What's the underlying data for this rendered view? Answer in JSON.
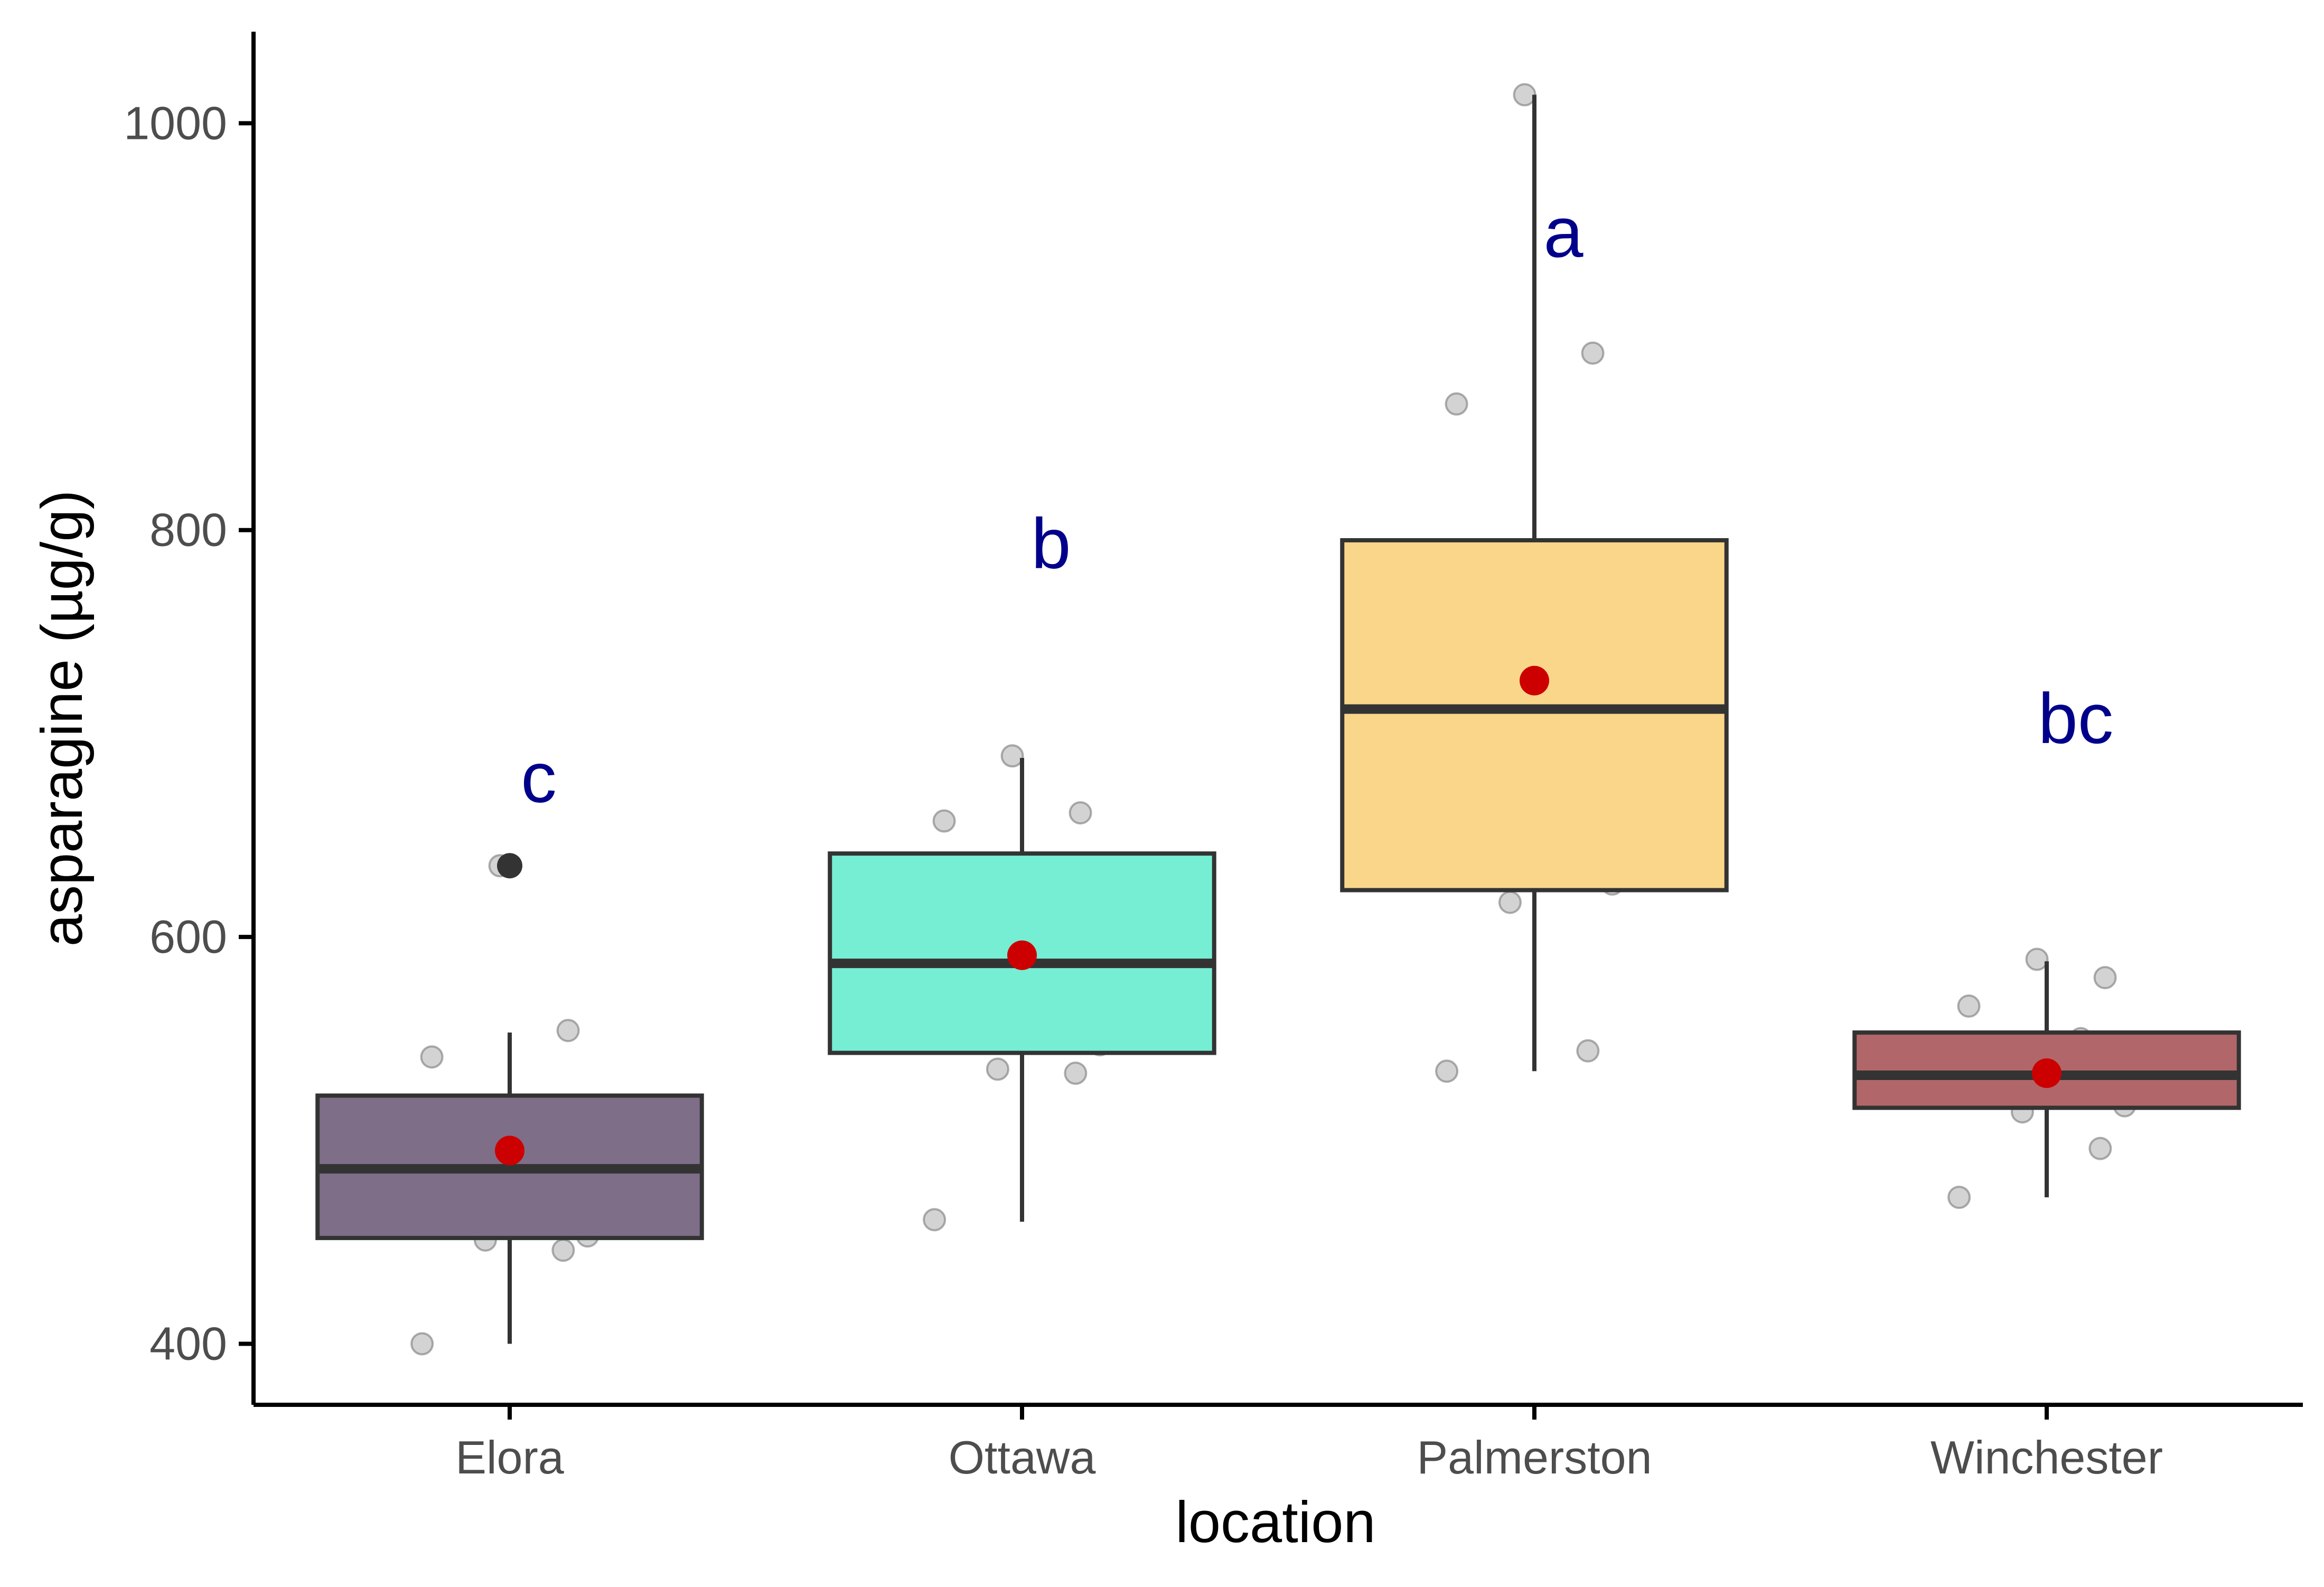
{
  "chart_data": {
    "type": "box",
    "xlabel": "location",
    "ylabel": "asparagine (µg/g)",
    "ylim": [
      370,
      1045
    ],
    "yticks": [
      400,
      600,
      800,
      1000
    ],
    "categories": [
      "Elora",
      "Ottawa",
      "Palmerston",
      "Winchester"
    ],
    "boxes": [
      {
        "category": "Elora",
        "whisker_low": 400,
        "q1": 452,
        "median": 486,
        "q3": 522,
        "whisker_high": 553,
        "mean": 495,
        "outliers": [
          635
        ],
        "fill": "#7f6e88",
        "letter": "c"
      },
      {
        "category": "Ottawa",
        "whisker_low": 460,
        "q1": 543,
        "median": 587,
        "q3": 641,
        "whisker_high": 688,
        "mean": 591,
        "outliers": [],
        "fill": "#76eed4",
        "letter": "b"
      },
      {
        "category": "Palmerston",
        "whisker_low": 534,
        "q1": 623,
        "median": 712,
        "q3": 795,
        "whisker_high": 1014,
        "mean": 726,
        "outliers": [],
        "fill": "#fad68a",
        "letter": "a"
      },
      {
        "category": "Winchester",
        "whisker_low": 472,
        "q1": 516,
        "median": 532,
        "q3": 553,
        "whisker_high": 588,
        "mean": 533,
        "outliers": [],
        "fill": "#b16769",
        "letter": "bc"
      }
    ],
    "jitter_points": [
      {
        "category": "Elora",
        "values": [
          400,
          446,
          451,
          453,
          466,
          486,
          486,
          505,
          516,
          541,
          554,
          635
        ]
      },
      {
        "category": "Ottawa",
        "values": [
          461,
          533,
          535,
          547,
          585,
          579,
          589,
          618,
          636,
          657,
          661,
          689
        ]
      },
      {
        "category": "Palmerston",
        "values": [
          534,
          544,
          617,
          626,
          669,
          691,
          733,
          760,
          772,
          862,
          887,
          1014
        ]
      },
      {
        "category": "Winchester",
        "values": [
          472,
          496,
          514,
          517,
          521,
          530,
          532,
          539,
          550,
          566,
          580,
          589
        ]
      }
    ],
    "letter_positions": [
      678,
      793,
      946,
      707
    ],
    "colors": {
      "letters": "#00008b",
      "mean": "#cc0000",
      "box_edge": "#333333",
      "jitter_fill": "#9e9e9e",
      "outlier": "#333333",
      "axis": "#000000",
      "tick_label": "#4d4d4d"
    },
    "grid": false,
    "legend": "none"
  }
}
